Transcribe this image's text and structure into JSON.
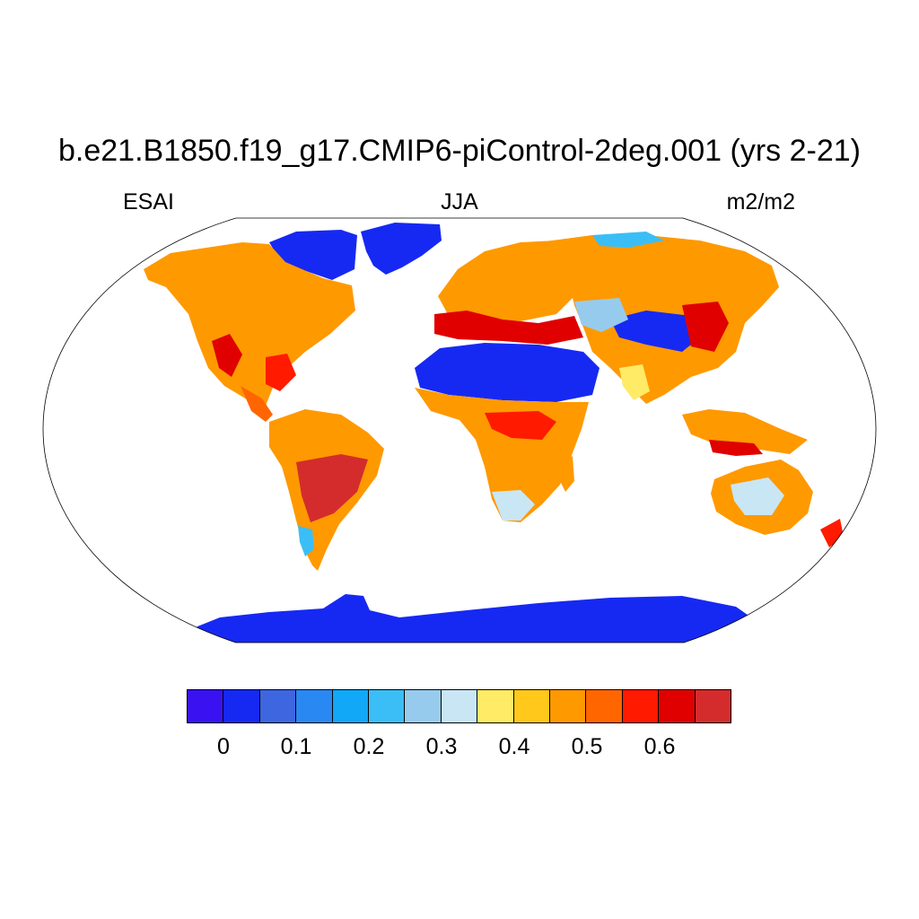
{
  "title": "b.e21.B1850.f19_g17.CMIP6-piControl-2deg.001 (yrs 2-21)",
  "left_string": "ESAI",
  "center_string": "JJA",
  "right_string": "m2/m2",
  "map": {
    "projection": "Robinson",
    "field": "ESAI",
    "season": "JJA",
    "units": "m2/m2",
    "regions": [
      {
        "name": "Antarctica",
        "color": "#1629f2"
      },
      {
        "name": "Greenland",
        "color": "#1629f2"
      },
      {
        "name": "Sahara",
        "color": "#1629f2"
      },
      {
        "name": "North America",
        "color": "#ff9900"
      },
      {
        "name": "South America",
        "color": "#ff9900"
      },
      {
        "name": "Africa",
        "color": "#ff9900"
      },
      {
        "name": "Eurasia",
        "color": "#ff9900"
      },
      {
        "name": "Australia",
        "color": "#ff9900"
      }
    ]
  },
  "colorbar": {
    "colors": [
      "#3a12f2",
      "#1629f2",
      "#3d66e0",
      "#2a88f2",
      "#10a8f7",
      "#3bbef5",
      "#97cbed",
      "#c9e6f5",
      "#ffeb66",
      "#ffc81a",
      "#ff9900",
      "#ff6600",
      "#ff1a00",
      "#e00000",
      "#d42c2c"
    ],
    "labels": [
      "0",
      "0.1",
      "0.2",
      "0.3",
      "0.4",
      "0.5",
      "0.6"
    ]
  }
}
